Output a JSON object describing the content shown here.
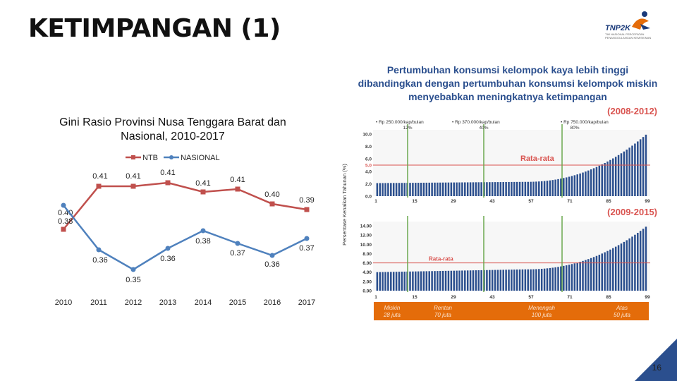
{
  "page": {
    "title": "KETIMPANGAN (1)",
    "page_number": "16",
    "colors": {
      "ntb": "#c0504d",
      "nasional": "#4f81bd",
      "accent_red": "#d9534f",
      "headline": "#2b4f8e",
      "orange": "#e46c0a"
    },
    "logo": {
      "name": "TNP2K",
      "sub": "TIM NASIONAL PERCEPATAN PENANGGULANGAN KEMISKINAN"
    }
  },
  "chart_data": [
    {
      "type": "line",
      "title": "Gini Rasio Provinsi Nusa Tenggara Barat dan Nasional, 2010-2017",
      "x": [
        "2010",
        "2011",
        "2012",
        "2013",
        "2014",
        "2015",
        "2016",
        "2017"
      ],
      "legend_position": "top",
      "series": [
        {
          "name": "NTB",
          "values": [
            0.4,
            0.41,
            0.41,
            0.41,
            0.41,
            0.41,
            0.4,
            0.39
          ],
          "labels": [
            "0.40",
            "0.41",
            "0.41",
            "0.41",
            "0.41",
            "0.41",
            "0.40",
            "0.39"
          ]
        },
        {
          "name": "NASIONAL",
          "values": [
            0.38,
            0.36,
            0.35,
            0.36,
            0.38,
            0.37,
            0.36,
            0.37
          ],
          "labels": [
            "0.38",
            "0.36",
            "0.35",
            "0.36",
            "0.38",
            "0.37",
            "0.36",
            "0.37"
          ]
        }
      ],
      "grid": false
    },
    {
      "type": "bar",
      "title": "Pertumbuhan konsumsi kelompok kaya lebih tinggi dibandingkan dengan pertumbuhan konsumsi kelompok miskin menyebabkan meningkatnya ketimpangan",
      "ylabel": "Persentase Kenaikan Tahunan (%)",
      "panels": [
        {
          "period": "(2008-2012)",
          "ylim": [
            0,
            10
          ],
          "y_ticks": [
            "0.0",
            "2.0",
            "4.0",
            "5.0",
            "6.0",
            "8.0",
            "10.0"
          ],
          "x_ticks": [
            "1",
            "15",
            "29",
            "43",
            "57",
            "71",
            "85",
            "99"
          ],
          "average": 5.0,
          "average_label": "Rata-rata",
          "thresholds": [
            {
              "label": "Rp 250.000/kap/bulan",
              "pct": "12%"
            },
            {
              "label": "Rp 370.000/kap/bulan",
              "pct": "40%"
            },
            {
              "label": "Rp 750.000/kap/bulan",
              "pct": "80%"
            }
          ],
          "bars_summary": {
            "start": 2.1,
            "mid": 2.3,
            "end": 9.9
          }
        },
        {
          "period": "(2009-2015)",
          "ylim": [
            0,
            14
          ],
          "y_ticks": [
            "0.00",
            "2.00",
            "4.00",
            "6.00",
            "8.00",
            "10.00",
            "12.00",
            "14.00"
          ],
          "x_ticks": [
            "1",
            "15",
            "29",
            "43",
            "57",
            "71",
            "85",
            "99"
          ],
          "average": 6.0,
          "average_label": "Rata-rata",
          "segments": [
            "Miskin 28 juta",
            "Rentan 70 juta",
            "Menengah 100 juta",
            "Atas 50 juta"
          ],
          "bars_summary": {
            "start": 4.0,
            "mid": 4.6,
            "end": 13.8
          }
        }
      ]
    }
  ]
}
